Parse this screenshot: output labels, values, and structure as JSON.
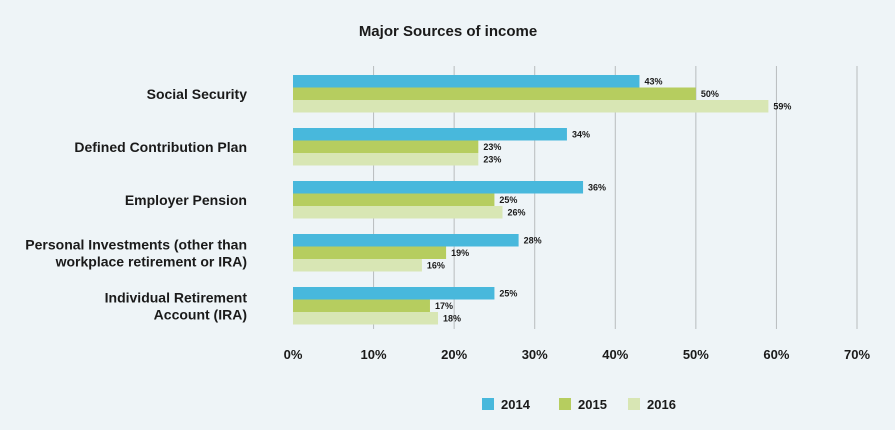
{
  "chart_data": {
    "type": "bar",
    "orientation": "horizontal",
    "title": "Major Sources of income",
    "categories": [
      [
        "Social Security"
      ],
      [
        "Defined Contribution Plan"
      ],
      [
        "Employer Pension"
      ],
      [
        "Personal Investments (other than",
        "workplace retirement or IRA)"
      ],
      [
        "Individual Retirement",
        "Account (IRA)"
      ]
    ],
    "series": [
      {
        "name": "2014",
        "color": "#48b8dc",
        "values": [
          43,
          34,
          36,
          28,
          25
        ]
      },
      {
        "name": "2015",
        "color": "#b6cd5f",
        "values": [
          50,
          23,
          25,
          19,
          17
        ]
      },
      {
        "name": "2016",
        "color": "#d8e6b4",
        "values": [
          59,
          23,
          26,
          16,
          18
        ]
      }
    ],
    "xlim": [
      0,
      70
    ],
    "xticks": [
      "0%",
      "10%",
      "20%",
      "30%",
      "40%",
      "50%",
      "60%",
      "70%"
    ],
    "value_suffix": "%",
    "grid": true,
    "legend_position": "bottom"
  }
}
